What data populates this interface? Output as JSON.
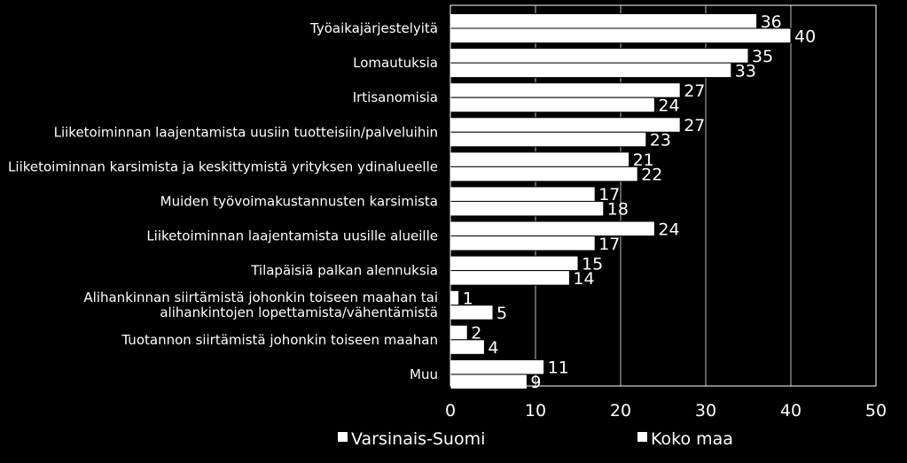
{
  "chart_data": {
    "type": "bar",
    "orientation": "horizontal",
    "title": "",
    "xlabel": "",
    "ylabel": "",
    "xlim": [
      0,
      50
    ],
    "xticks": [
      0,
      10,
      20,
      30,
      40,
      50
    ],
    "grid": "vertical",
    "legend_position": "bottom",
    "categories": [
      [
        "Työaikajärjestelyitä"
      ],
      [
        "Lomautuksia"
      ],
      [
        "Irtisanomisia"
      ],
      [
        "Liiketoiminnan laajentamista uusiin tuotteisiin/palveluihin"
      ],
      [
        "Liiketoiminnan karsimista ja keskittymistä yrityksen ydinalueelle"
      ],
      [
        "Muiden työvoimakustannusten karsimista"
      ],
      [
        "Liiketoiminnan laajentamista uusille alueille"
      ],
      [
        "Tilapäisiä palkan alennuksia"
      ],
      [
        "Alihankinnan siirtämistä johonkin toiseen maahan tai",
        "alihankintojen lopettamista/vähentämistä"
      ],
      [
        "Tuotannon siirtämistä johonkin toiseen maahan"
      ],
      [
        "Muu"
      ]
    ],
    "series": [
      {
        "name": "Varsinais-Suomi",
        "values": [
          36,
          35,
          27,
          27,
          21,
          17,
          24,
          15,
          1,
          2,
          11
        ],
        "color": "#ffffff"
      },
      {
        "name": "Koko maa",
        "values": [
          40,
          33,
          24,
          23,
          22,
          18,
          17,
          14,
          5,
          4,
          9
        ],
        "color": "#ffffff"
      }
    ],
    "colors": {
      "background": "#000000",
      "plot_border": "#ffffff",
      "gridline": "#bfbfbf",
      "text": "#ffffff"
    }
  }
}
